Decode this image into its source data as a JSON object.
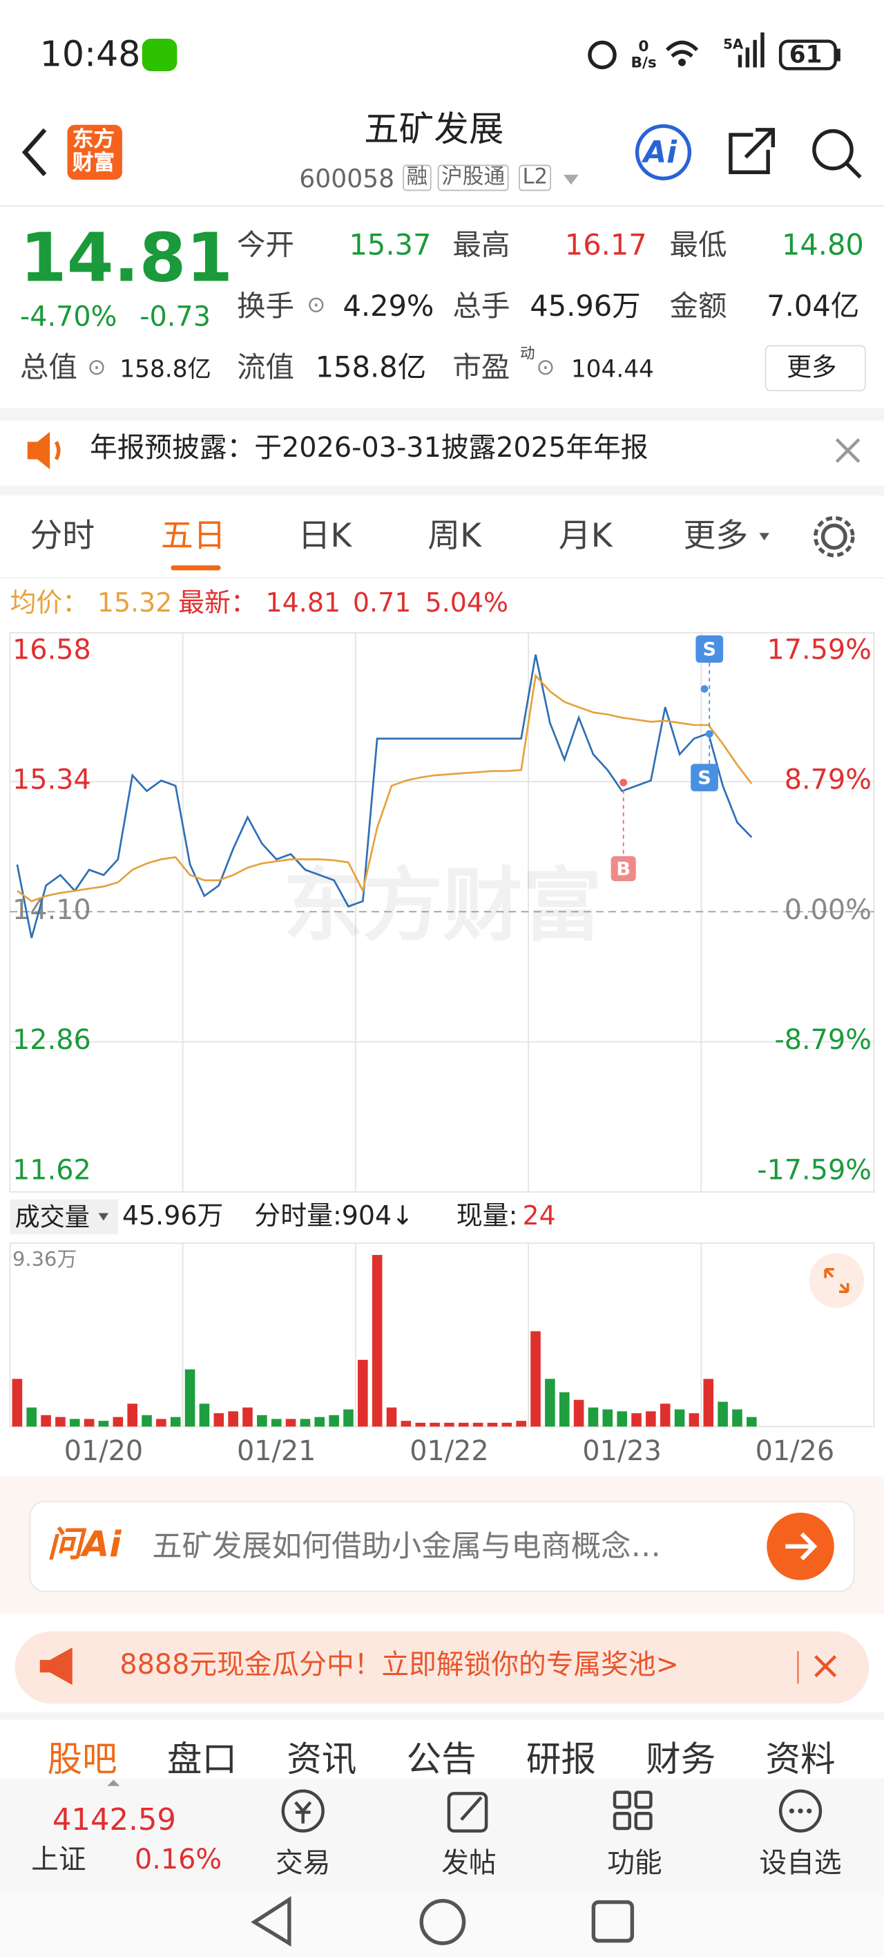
{
  "status_bar": {
    "time": "10:48",
    "net_speed": "0",
    "net_unit": "B/s",
    "signal": "5A",
    "battery": "61"
  },
  "header": {
    "logo": [
      "东方",
      "财富"
    ],
    "title": "五矿发展",
    "code": "600058",
    "badges": [
      "融",
      "沪股通",
      "L2"
    ],
    "ai": "Ai"
  },
  "quote": {
    "price": "14.81",
    "pct": "-4.70%",
    "change": "-0.73",
    "fields": [
      {
        "label": "今开",
        "value": "15.37"
      },
      {
        "label": "最高",
        "value": "16.17"
      },
      {
        "label": "最低",
        "value": "14.80"
      },
      {
        "label": "换手",
        "value": "4.29%"
      },
      {
        "label": "总手",
        "value": "45.96万"
      },
      {
        "label": "金额",
        "value": "7.04亿"
      },
      {
        "label": "总值",
        "value": "158.8亿"
      },
      {
        "label": "流值",
        "value": "158.8亿"
      },
      {
        "label": "市盈",
        "sup": "动",
        "value": "104.44"
      }
    ],
    "more": "更多"
  },
  "notice": {
    "text": "年报预披露：于2026-03-31披露2025年年报"
  },
  "tabs": [
    "分时",
    "五日",
    "日K",
    "周K",
    "月K",
    "更多"
  ],
  "chart_info": {
    "avg": "15.32",
    "latest": "14.81",
    "change": "0.71",
    "pct": "5.04%"
  },
  "volume_info": {
    "label": "成交量",
    "total": "45.96万",
    "tick_label": "分时量:904↓",
    "now_label": "现量:",
    "now": "24"
  },
  "ai_bar": {
    "brand": "问Ai",
    "placeholder": "五矿发展如何借助小金属与电商概念…"
  },
  "promo": {
    "text": "8888元现金瓜分中！立即解锁你的专属奖池>"
  },
  "sub_tabs": [
    "股吧",
    "盘口",
    "资讯",
    "公告",
    "研报",
    "财务",
    "资料"
  ],
  "bottom_bar": {
    "index_value": "4142.59",
    "index_name": "上证",
    "index_pct": "0.16%",
    "items": [
      "交易",
      "发帖",
      "功能",
      "设自选"
    ]
  },
  "chart_data": [
    {
      "type": "line",
      "watermark": "东方财富",
      "categories": [
        null,
        null,
        null,
        null,
        null,
        null,
        "01/20",
        null,
        null,
        null,
        null,
        null,
        null,
        null,
        null,
        null,
        null,
        null,
        "01/21",
        null,
        null,
        null,
        null,
        null,
        null,
        null,
        null,
        null,
        null,
        null,
        "01/22",
        null,
        null,
        null,
        null,
        null,
        null,
        null,
        null,
        null,
        null,
        null,
        "01/23",
        null,
        null,
        null,
        null,
        null,
        null,
        null,
        null,
        null,
        null,
        null,
        "01/26",
        null,
        null,
        null,
        null,
        null
      ],
      "series": [
        {
          "name": "最新：",
          "color": "#2e6fb6",
          "values": [
            14.55,
            13.85,
            14.35,
            14.45,
            14.3,
            14.5,
            14.45,
            14.6,
            15.4,
            15.25,
            15.35,
            15.3,
            14.55,
            14.25,
            14.35,
            14.7,
            15.0,
            14.75,
            14.6,
            14.65,
            14.5,
            14.45,
            14.4,
            14.15,
            14.2,
            15.75,
            15.75,
            15.75,
            15.75,
            15.75,
            15.75,
            15.75,
            15.75,
            15.75,
            15.75,
            15.75,
            16.55,
            15.9,
            15.55,
            15.95,
            15.6,
            15.45,
            15.25,
            15.3,
            15.35,
            16.05,
            15.6,
            15.75,
            15.8,
            15.3,
            14.95,
            14.81,
            null,
            null,
            null,
            null,
            null,
            null,
            null,
            null
          ]
        },
        {
          "name": "均价：",
          "color": "#e6a23c",
          "values": [
            14.3,
            14.2,
            14.25,
            14.28,
            14.3,
            14.32,
            14.34,
            14.38,
            14.5,
            14.56,
            14.6,
            14.62,
            14.45,
            14.4,
            14.4,
            14.45,
            14.52,
            14.56,
            14.58,
            14.6,
            14.6,
            14.6,
            14.59,
            14.57,
            14.3,
            14.9,
            15.3,
            15.35,
            15.38,
            15.4,
            15.41,
            15.42,
            15.43,
            15.44,
            15.44,
            15.45,
            16.35,
            16.2,
            16.1,
            16.05,
            16.0,
            15.98,
            15.95,
            15.93,
            15.91,
            15.92,
            15.9,
            15.88,
            15.88,
            15.7,
            15.5,
            15.32,
            null,
            null,
            null,
            null,
            null,
            null,
            null,
            null
          ]
        }
      ],
      "annotations": [
        "B",
        "S",
        "S"
      ],
      "ylim": [
        11.62,
        16.58
      ],
      "yticks": [
        16.58,
        15.34,
        14.1,
        12.86,
        11.62
      ],
      "ytick_labels": [
        {
          "value": 14.1,
          "label": "14.10"
        }
      ],
      "y2lim": [
        -17.59,
        17.59
      ],
      "y2ticks": [
        {
          "value": 17.59,
          "label": "17.59%"
        },
        {
          "value": 8.79,
          "label": "8.79%"
        },
        {
          "value": 0,
          "label": "0.00%"
        },
        {
          "value": -8.79,
          "label": "-8.79%"
        },
        {
          "value": -17.59,
          "label": "-17.59%"
        }
      ],
      "grid": true
    },
    {
      "type": "bar",
      "up_color": "#e0302d",
      "down_color": "#1e9e3e",
      "values": [
        2.5,
        1.0,
        0.6,
        0.5,
        0.4,
        0.4,
        0.3,
        0.5,
        1.2,
        0.6,
        0.4,
        0.5,
        3.0,
        1.2,
        0.7,
        0.8,
        1.0,
        0.6,
        0.4,
        0.4,
        0.4,
        0.5,
        0.6,
        0.9,
        3.5,
        9.0,
        1.0,
        0.3,
        0.2,
        0.2,
        0.2,
        0.2,
        0.2,
        0.2,
        0.2,
        0.3,
        5.0,
        2.5,
        1.8,
        1.4,
        1.0,
        0.9,
        0.8,
        0.7,
        0.8,
        1.2,
        0.9,
        0.7,
        2.5,
        1.3,
        0.9,
        0.5,
        null,
        null,
        null,
        null,
        null,
        null,
        null,
        null
      ],
      "ylim": [
        0,
        9.36
      ],
      "yticks": [
        {
          "value": 9.36,
          "label": "9.36万"
        }
      ]
    }
  ]
}
